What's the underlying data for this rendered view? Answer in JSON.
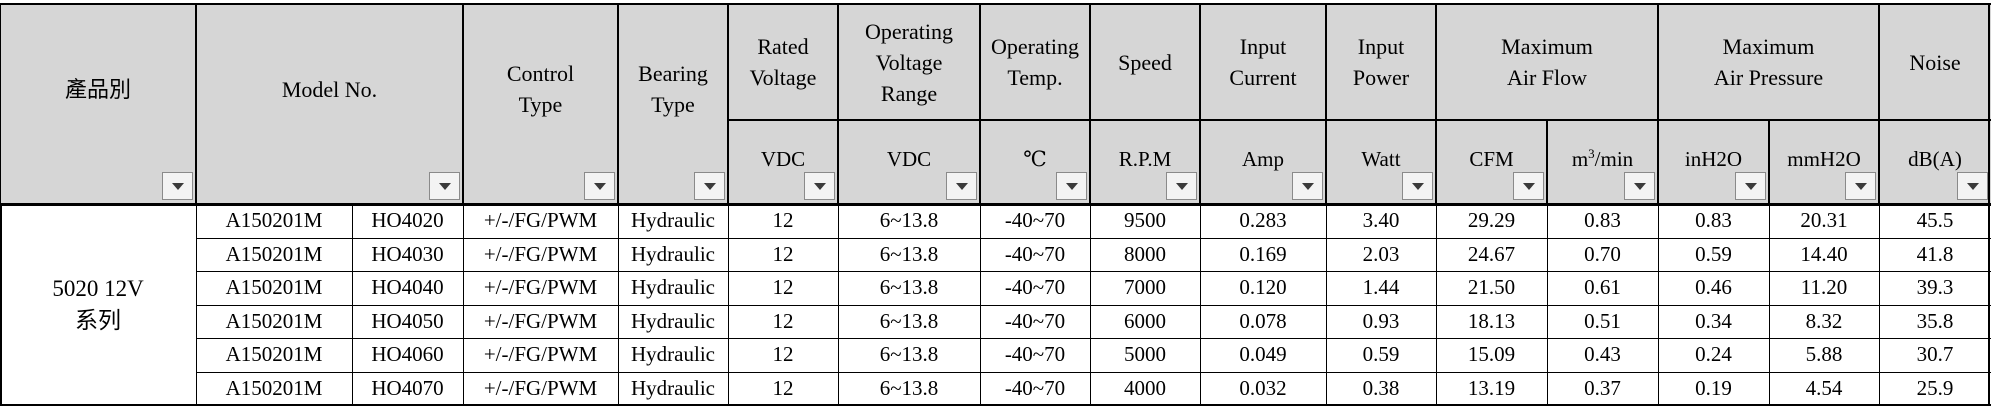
{
  "headers": {
    "category": "產品別",
    "model": "Model No.",
    "control": "Control\nType",
    "bearing": "Bearing\nType",
    "rated_voltage": "Rated\nVoltage",
    "voltage_range": "Operating\nVoltage\nRange",
    "temp": "Operating\nTemp.",
    "speed": "Speed",
    "current": "Input\nCurrent",
    "power": "Input\nPower",
    "airflow": "Maximum\nAir Flow",
    "pressure": "Maximum\nAir Pressure",
    "noise": "Noise"
  },
  "units": {
    "rated_voltage": "VDC",
    "voltage_range": "VDC",
    "temp": "℃",
    "speed": "R.P.M",
    "current": "Amp",
    "power": "Watt",
    "airflow_cfm": "CFM",
    "airflow_m3_base": "m",
    "airflow_m3_sup": "3",
    "airflow_m3_tail": "/min",
    "pressure_inh2o": "inH2O",
    "pressure_mmh2o": "mmH2O",
    "noise": "dB(A)"
  },
  "group_label": "5020 12V\n系列",
  "rows": [
    {
      "model_a": "A150201M",
      "model_b": "HO4020",
      "control": "+/-/FG/PWM",
      "bearing": "Hydraulic",
      "rated_v": "12",
      "v_range": "6~13.8",
      "temp": "-40~70",
      "speed": "9500",
      "current": "0.283",
      "power": "3.40",
      "cfm": "29.29",
      "m3min": "0.83",
      "inh2o": "0.83",
      "mmh2o": "20.31",
      "noise": "45.5"
    },
    {
      "model_a": "A150201M",
      "model_b": "HO4030",
      "control": "+/-/FG/PWM",
      "bearing": "Hydraulic",
      "rated_v": "12",
      "v_range": "6~13.8",
      "temp": "-40~70",
      "speed": "8000",
      "current": "0.169",
      "power": "2.03",
      "cfm": "24.67",
      "m3min": "0.70",
      "inh2o": "0.59",
      "mmh2o": "14.40",
      "noise": "41.8"
    },
    {
      "model_a": "A150201M",
      "model_b": "HO4040",
      "control": "+/-/FG/PWM",
      "bearing": "Hydraulic",
      "rated_v": "12",
      "v_range": "6~13.8",
      "temp": "-40~70",
      "speed": "7000",
      "current": "0.120",
      "power": "1.44",
      "cfm": "21.50",
      "m3min": "0.61",
      "inh2o": "0.46",
      "mmh2o": "11.20",
      "noise": "39.3"
    },
    {
      "model_a": "A150201M",
      "model_b": "HO4050",
      "control": "+/-/FG/PWM",
      "bearing": "Hydraulic",
      "rated_v": "12",
      "v_range": "6~13.8",
      "temp": "-40~70",
      "speed": "6000",
      "current": "0.078",
      "power": "0.93",
      "cfm": "18.13",
      "m3min": "0.51",
      "inh2o": "0.34",
      "mmh2o": "8.32",
      "noise": "35.8"
    },
    {
      "model_a": "A150201M",
      "model_b": "HO4060",
      "control": "+/-/FG/PWM",
      "bearing": "Hydraulic",
      "rated_v": "12",
      "v_range": "6~13.8",
      "temp": "-40~70",
      "speed": "5000",
      "current": "0.049",
      "power": "0.59",
      "cfm": "15.09",
      "m3min": "0.43",
      "inh2o": "0.24",
      "mmh2o": "5.88",
      "noise": "30.7"
    },
    {
      "model_a": "A150201M",
      "model_b": "HO4070",
      "control": "+/-/FG/PWM",
      "bearing": "Hydraulic",
      "rated_v": "12",
      "v_range": "6~13.8",
      "temp": "-40~70",
      "speed": "4000",
      "current": "0.032",
      "power": "0.38",
      "cfm": "13.19",
      "m3min": "0.37",
      "inh2o": "0.19",
      "mmh2o": "4.54",
      "noise": "25.9"
    }
  ],
  "colors": {
    "header_fill": "#d6d6d6",
    "grid_line": "#000000",
    "filter_button": "#f3f3f3"
  },
  "icons": {
    "filter": "filter-dropdown-icon"
  }
}
